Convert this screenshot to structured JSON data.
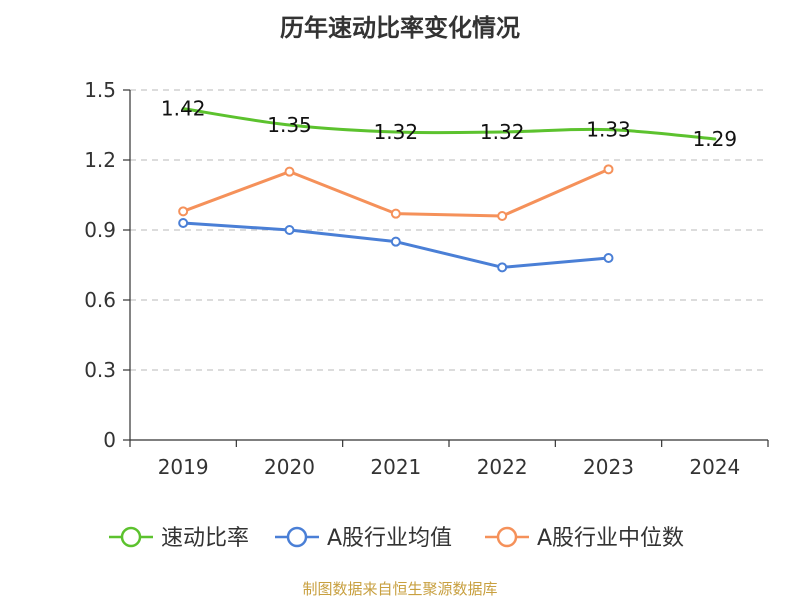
{
  "title": "历年速动比率变化情况",
  "source": "制图数据来自恒生聚源数据库",
  "chart_data": {
    "type": "line",
    "title": "历年速动比率变化情况",
    "xlabel": "",
    "ylabel": "",
    "categories": [
      "2019",
      "2020",
      "2021",
      "2022",
      "2023",
      "2024"
    ],
    "ylim": [
      0,
      1.5
    ],
    "yticks": [
      0,
      0.3,
      0.6,
      0.9,
      1.2,
      1.5
    ],
    "ytick_labels": [
      "0",
      "0.3",
      "0.6",
      "0.9",
      "1.2",
      "1.5"
    ],
    "grid": "horizontal dashed",
    "legend_position": "bottom",
    "series": [
      {
        "name": "速动比率",
        "color": "#5cc22e",
        "values": [
          1.42,
          1.35,
          1.32,
          1.32,
          1.33,
          1.29
        ],
        "data_labels": [
          "1.42",
          "1.35",
          "1.32",
          "1.32",
          "1.33",
          "1.29"
        ],
        "smooth": true,
        "show_markers": false
      },
      {
        "name": "A股行业均值",
        "color": "#4a7fd6",
        "values": [
          0.93,
          0.9,
          0.85,
          0.74,
          0.78,
          null
        ],
        "smooth": false,
        "show_markers": true
      },
      {
        "name": "A股行业中位数",
        "color": "#f5915a",
        "values": [
          0.98,
          1.15,
          0.97,
          0.96,
          1.16,
          null
        ],
        "smooth": false,
        "show_markers": true
      }
    ]
  }
}
